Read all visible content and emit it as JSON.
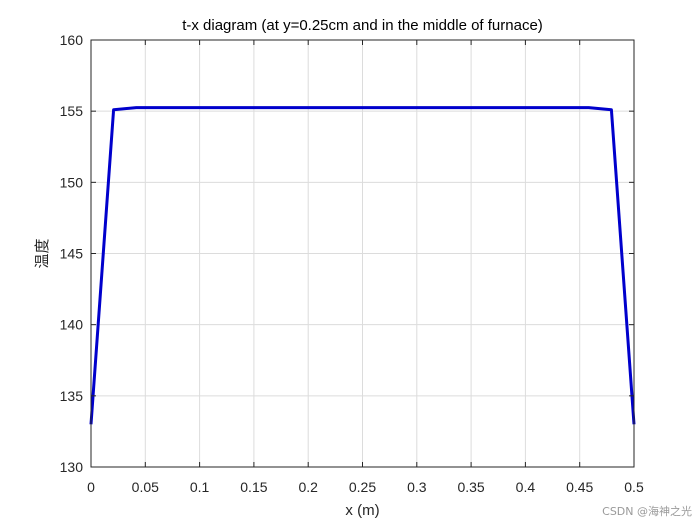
{
  "chart_data": {
    "type": "line",
    "title": "t-x diagram (at y=0.25cm and in the middle of furnace)",
    "xlabel": "x (m)",
    "ylabel": "温度",
    "xlim": [
      0,
      0.5
    ],
    "ylim": [
      130,
      160
    ],
    "xticks": [
      0,
      0.05,
      0.1,
      0.15,
      0.2,
      0.25,
      0.3,
      0.35,
      0.4,
      0.45,
      0.5
    ],
    "xtick_labels": [
      "0",
      "0.05",
      "0.1",
      "0.15",
      "0.2",
      "0.25",
      "0.3",
      "0.35",
      "0.4",
      "0.45",
      "0.5"
    ],
    "yticks": [
      130,
      135,
      140,
      145,
      150,
      155,
      160
    ],
    "ytick_labels": [
      "130",
      "135",
      "140",
      "145",
      "150",
      "155",
      "160"
    ],
    "grid": true,
    "series": [
      {
        "color": "#0000cc",
        "x": [
          0,
          0.0208,
          0.0417,
          0.0625,
          0.25,
          0.4375,
          0.4583,
          0.4792,
          0.5
        ],
        "y": [
          133,
          155.1,
          155.25,
          155.25,
          155.25,
          155.25,
          155.25,
          155.1,
          133
        ]
      }
    ]
  },
  "watermark": "CSDN @海神之光"
}
